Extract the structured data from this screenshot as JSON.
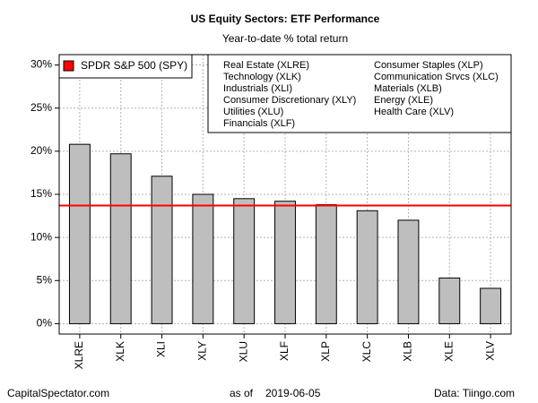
{
  "chart_data": {
    "type": "bar",
    "title": "US Equity Sectors: ETF Performance",
    "subtitle": "Year-to-date % total return",
    "categories": [
      "XLRE",
      "XLK",
      "XLI",
      "XLY",
      "XLU",
      "XLF",
      "XLP",
      "XLC",
      "XLB",
      "XLE",
      "XLV"
    ],
    "values": [
      20.8,
      19.7,
      17.1,
      15.0,
      14.5,
      14.2,
      13.8,
      13.1,
      12.0,
      5.3,
      4.1
    ],
    "color": "#bebebe",
    "ylim": [
      -1.2,
      31.2
    ],
    "yticks": [
      {
        "value": 0,
        "label": "0%"
      },
      {
        "value": 5,
        "label": "5%"
      },
      {
        "value": 10,
        "label": "10%"
      },
      {
        "value": 15,
        "label": "15%"
      },
      {
        "value": 20,
        "label": "20%"
      },
      {
        "value": 25,
        "label": "25%"
      },
      {
        "value": 30,
        "label": "30%"
      }
    ],
    "grid": true,
    "reference": {
      "name": "SPDR S&P 500 (SPY)",
      "value": 13.7,
      "color": "#ff0000"
    },
    "sector_legend": [
      "Real Estate (XLRE)",
      "Technology (XLK)",
      "Industrials (XLI)",
      "Consumer Discretionary (XLY)",
      "Utilities (XLU)",
      "Financials (XLF)",
      "Consumer Staples (XLP)",
      "Communication Srvcs (XLC)",
      "Materials (XLB)",
      "Energy (XLE)",
      "Health Care (XLV)"
    ],
    "footer": {
      "left": "CapitalSpectator.com",
      "as_of_label": "as of",
      "date": "2019-06-05",
      "right": "Data: Tiingo.com"
    }
  }
}
